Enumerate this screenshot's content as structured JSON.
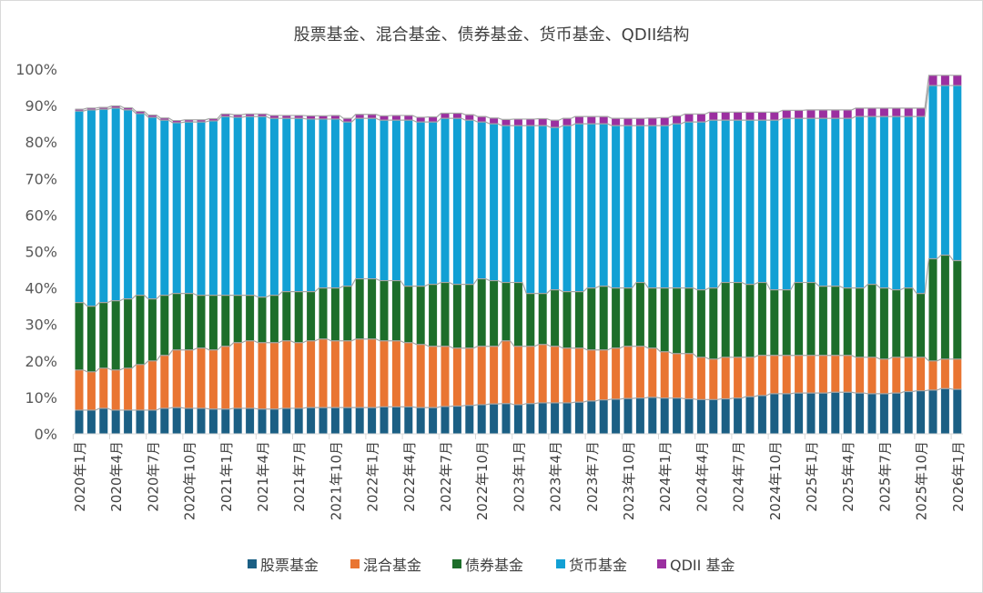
{
  "chart_data": {
    "type": "bar",
    "stacked": true,
    "title": "股票基金、混合基金、债券基金、货币基金、QDII结构",
    "xlabel": "",
    "ylabel": "",
    "ylim": [
      0,
      100
    ],
    "y_ticks": [
      "0%",
      "10%",
      "20%",
      "30%",
      "40%",
      "50%",
      "60%",
      "70%",
      "80%",
      "90%",
      "100%"
    ],
    "x_tick_labels": [
      "2020年1月",
      "2020年4月",
      "2020年7月",
      "2020年10月",
      "2021年1月",
      "2021年4月",
      "2021年7月",
      "2021年10月",
      "2022年1月",
      "2022年4月",
      "2022年7月",
      "2022年10月",
      "2023年1月",
      "2023年4月",
      "2023年7月",
      "2023年10月",
      "2024年1月",
      "2024年4月",
      "2024年7月",
      "2024年10月",
      "2025年1月",
      "2025年4月",
      "2025年7月",
      "2025年10月",
      "2026年1月"
    ],
    "x_start": "2020-01",
    "x_end": "2026-01",
    "legend_position": "bottom",
    "grid": false,
    "series": [
      {
        "name": "股票基金",
        "color": "#1b5f84",
        "values": [
          6.5,
          6.5,
          7,
          6.5,
          6.5,
          6.5,
          6.5,
          7,
          7.2,
          7,
          7,
          6.8,
          6.8,
          7,
          7,
          6.8,
          6.8,
          7,
          7,
          7.2,
          7.2,
          7.2,
          7.2,
          7.2,
          7.2,
          7.4,
          7.4,
          7.4,
          7.2,
          7.2,
          7.5,
          7.6,
          7.8,
          8,
          8.2,
          8.3,
          8,
          8.3,
          8.5,
          8.5,
          8.5,
          8.7,
          9,
          9.3,
          9.5,
          9.7,
          9.8,
          10,
          9.8,
          9.8,
          9.6,
          9.4,
          9.4,
          9.6,
          9.8,
          10.2,
          10.5,
          11,
          11,
          11.2,
          11.2,
          11.2,
          11.4,
          11.4,
          11.2,
          11,
          11,
          11.2,
          11.6,
          11.8,
          12,
          12.4,
          12.2
        ]
      },
      {
        "name": "混合基金",
        "color": "#e97532",
        "values": [
          11,
          10.5,
          11,
          11,
          11.5,
          12.5,
          13.5,
          14.5,
          15.8,
          16,
          16.5,
          16.2,
          17.2,
          18,
          18.5,
          18.2,
          18.2,
          18.5,
          18,
          18.3,
          18.8,
          18.3,
          18.3,
          18.8,
          18.8,
          18.1,
          18.1,
          17.6,
          17.3,
          16.8,
          16.5,
          15.9,
          15.7,
          16,
          15.8,
          17.2,
          16,
          15.7,
          16,
          15.5,
          15,
          14.8,
          14,
          13.7,
          14,
          14.3,
          14.2,
          13.5,
          12.7,
          12.2,
          12.4,
          11.6,
          11.1,
          11.4,
          11.2,
          10.8,
          11,
          10.5,
          10.5,
          10.3,
          10.3,
          10.3,
          10.1,
          10.1,
          9.8,
          10,
          9.5,
          9.8,
          9.4,
          9.2,
          8,
          8.1,
          8.3
        ]
      },
      {
        "name": "债券基金",
        "color": "#1d6e2a",
        "values": [
          18.5,
          18,
          18,
          19,
          19,
          19,
          17,
          16.5,
          15.5,
          15.5,
          14.5,
          15,
          14,
          13,
          12.5,
          12.5,
          13,
          13.5,
          14,
          13.5,
          14,
          14.5,
          15,
          16.5,
          16.5,
          16.5,
          16.5,
          15.5,
          16,
          17,
          17.5,
          17.5,
          17.5,
          18.5,
          18,
          16,
          17.5,
          14.5,
          14,
          15.5,
          15.5,
          15.5,
          17,
          17.5,
          16.5,
          16,
          17.5,
          16.5,
          17.5,
          18,
          18,
          18.5,
          19.5,
          20.5,
          20.5,
          20,
          20,
          18,
          18,
          20,
          20,
          19,
          19,
          18.5,
          19,
          20,
          19.5,
          18.5,
          19,
          17.5,
          28,
          28.5,
          27
        ]
      },
      {
        "name": "货币基金",
        "color": "#12a0d4",
        "values": [
          52.5,
          53.8,
          53,
          52.8,
          51.8,
          49.8,
          49.8,
          48,
          46.8,
          47,
          47.5,
          47.8,
          49,
          48.8,
          49,
          49.5,
          48.5,
          47.5,
          47.5,
          47.3,
          46.3,
          46.3,
          45,
          44,
          44,
          44,
          44,
          45.5,
          45,
          44.5,
          45,
          45.5,
          45,
          43,
          43,
          43,
          43,
          46,
          46,
          44.5,
          45.5,
          46,
          45,
          44.5,
          44.5,
          44.5,
          43,
          44.5,
          44.5,
          45,
          45.5,
          46,
          46,
          44.5,
          44.5,
          45,
          44.5,
          46.5,
          47,
          45,
          45,
          46,
          46,
          46.5,
          47,
          46,
          47,
          47.5,
          47,
          48.5,
          47.5,
          46.5,
          48
        ]
      },
      {
        "name": "QDII 基金",
        "color": "#9b2fa0",
        "values": [
          0.5,
          0.5,
          0.5,
          0.6,
          0.6,
          0.6,
          0.6,
          0.6,
          0.6,
          0.6,
          0.6,
          0.6,
          0.7,
          0.7,
          0.7,
          0.7,
          0.8,
          0.8,
          0.8,
          0.9,
          0.9,
          1,
          1,
          1.1,
          1.1,
          1.2,
          1.3,
          1.3,
          1.3,
          1.4,
          1.4,
          1.4,
          1.5,
          1.5,
          1.6,
          1.7,
          1.8,
          1.8,
          1.9,
          2,
          2,
          2,
          2,
          2,
          2,
          2,
          2,
          2.1,
          2.2,
          2.2,
          2.2,
          2.2,
          2.2,
          2.2,
          2.2,
          2.2,
          2.2,
          2.2,
          2.2,
          2.2,
          2.3,
          2.3,
          2.3,
          2.3,
          2.3,
          2.3,
          2.3,
          2.3,
          2.3,
          2.3,
          2.8,
          2.8,
          2.8
        ]
      }
    ]
  }
}
